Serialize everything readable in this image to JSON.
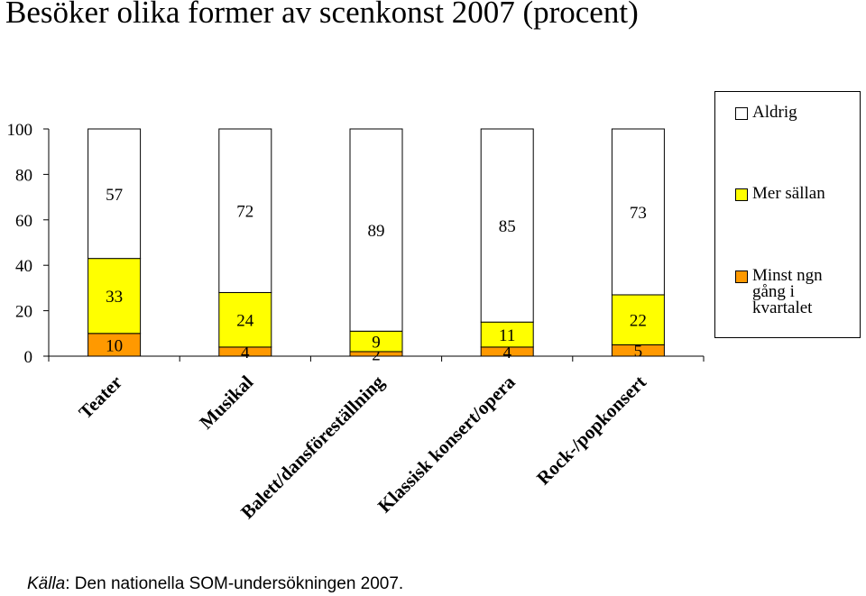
{
  "title": "Besöker olika former av scenkonst 2007 (procent)",
  "source": {
    "label": "Källa",
    "text": ": Den nationella SOM-undersökningen 2007."
  },
  "chart_data": {
    "type": "bar",
    "stacked": true,
    "title": "Besöker olika former av scenkonst 2007 (procent)",
    "categories": [
      "Teater",
      "Musikal",
      "Balett/dansföreställning",
      "Klassisk konsert/opera",
      "Rock-/popkonsert"
    ],
    "series": [
      {
        "name": "Minst ngn gång i kvartalet",
        "color": "#FF9900",
        "values": [
          10,
          4,
          2,
          4,
          5
        ]
      },
      {
        "name": "Mer sällan",
        "color": "#FFFF00",
        "values": [
          33,
          24,
          9,
          11,
          22
        ]
      },
      {
        "name": "Aldrig",
        "color": "#FFFFFF",
        "values": [
          57,
          72,
          89,
          85,
          73
        ]
      }
    ],
    "ylim": [
      0,
      100
    ],
    "yticks": [
      "0",
      "20",
      "40",
      "60",
      "80",
      "100"
    ],
    "legend_position": "right",
    "grid": false
  }
}
